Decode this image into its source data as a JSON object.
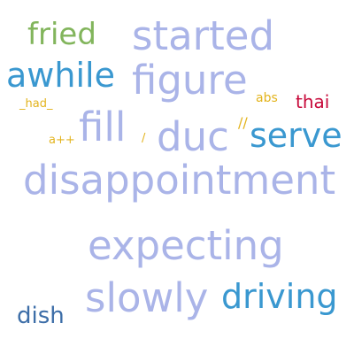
{
  "words": [
    {
      "text": "fried",
      "color": "#82b55c"
    },
    {
      "text": "started",
      "color": "#aab4e8"
    },
    {
      "text": "awhile",
      "color": "#3a98d0"
    },
    {
      "text": "figure",
      "color": "#aab4e8"
    },
    {
      "text": "abs",
      "color": "#e3b41e"
    },
    {
      "text": "thai",
      "color": "#c7093a"
    },
    {
      "text": "_had_",
      "color": "#e3b41e"
    },
    {
      "text": "fill",
      "color": "#aab4e8"
    },
    {
      "text": "duc",
      "color": "#aab4e8"
    },
    {
      "text": "//",
      "color": "#e3b41e"
    },
    {
      "text": "serve",
      "color": "#3a98d0"
    },
    {
      "text": "a++",
      "color": "#e3b41e"
    },
    {
      "text": "/",
      "color": "#e3b41e"
    },
    {
      "text": "disappointment",
      "color": "#aab4e8"
    },
    {
      "text": "expecting",
      "color": "#aab4e8"
    },
    {
      "text": "slowly",
      "color": "#aab4e8"
    },
    {
      "text": "driving",
      "color": "#3a98d0"
    },
    {
      "text": "dish",
      "color": "#3d6ea8"
    }
  ]
}
